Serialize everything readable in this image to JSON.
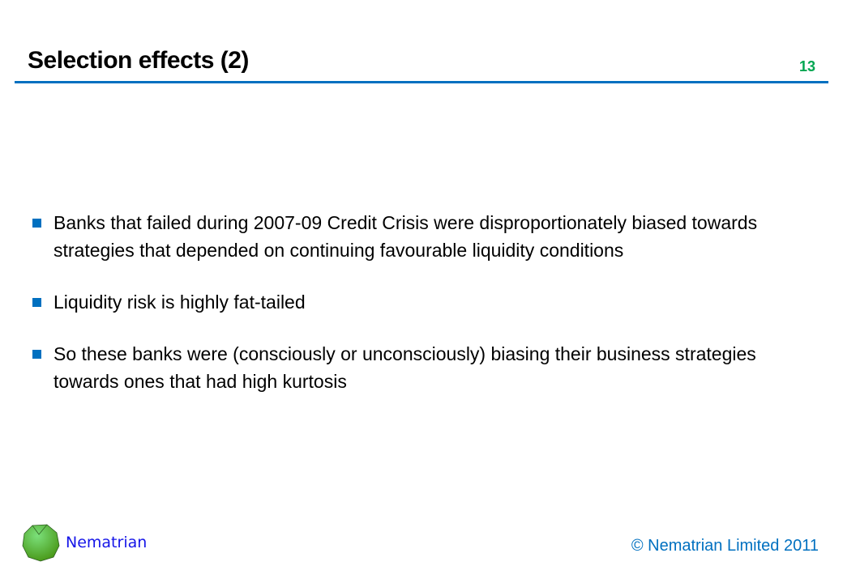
{
  "slide": {
    "title": "Selection effects (2)",
    "page_number": "13",
    "bullets": [
      "Banks that failed during 2007-09 Credit Crisis were disproportionately biased towards strategies that depended on continuing favourable liquidity conditions",
      "Liquidity risk is highly fat-tailed",
      "So these banks were (consciously or unconsciously) biasing their business strategies towards ones that had high kurtosis"
    ]
  },
  "footer": {
    "brand": "Nematrian",
    "copyright": "© Nematrian Limited 2011",
    "logo_icon": "green-polyhedron-logo"
  },
  "colors": {
    "accent": "#0070c0",
    "page_number": "#00a651",
    "brand": "#1515e8"
  }
}
